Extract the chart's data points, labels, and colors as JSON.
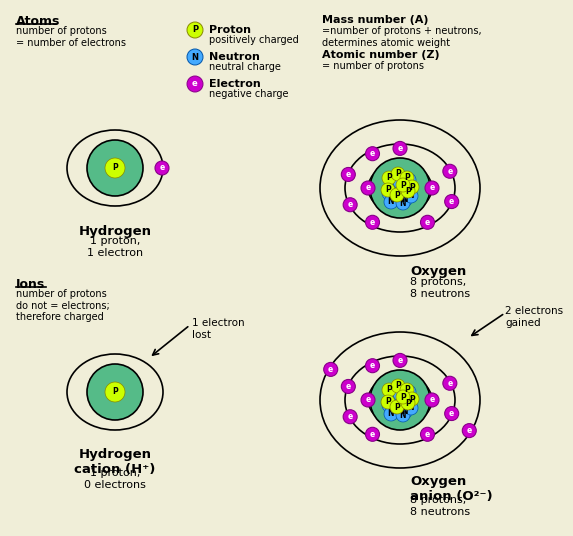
{
  "bg_color": "#f0eed8",
  "proton_color": "#ccff00",
  "neutron_color": "#44aaff",
  "electron_color": "#cc00cc",
  "nuc_bg_color": "#55bb88",
  "atoms_label": "Atoms",
  "atoms_desc": "number of protons\n= number of electrons",
  "ions_label": "Ions",
  "ions_desc": "number of protons\ndo not = electrons;\ntherefore charged",
  "legend_proton_label": "Proton",
  "legend_proton_desc": "positively charged",
  "legend_neutron_label": "Neutron",
  "legend_neutron_desc": "neutral charge",
  "legend_electron_label": "Electron",
  "legend_electron_desc": "negative charge",
  "mass_number_title": "Mass number (A)",
  "mass_number_desc": "=number of protons + neutrons,\ndetermines atomic weight",
  "atomic_number_title": "Atomic number (Z)",
  "atomic_number_desc": "= number of protons",
  "hydrogen_atom_label": "Hydrogen",
  "hydrogen_atom_desc": "1 proton,\n1 electron",
  "oxygen_atom_label": "Oxygen",
  "oxygen_atom_desc": "8 protons,\n8 neutrons",
  "hydrogen_ion_label": "Hydrogen\ncation (H⁺)",
  "hydrogen_ion_desc": "1 proton,\n0 electrons",
  "electron_lost_label": "1 electron\nlost",
  "oxygen_ion_label": "Oxygen\nanion (O²⁻)",
  "oxygen_ion_desc": "8 protons,\n8 neutrons",
  "electrons_gained_label": "2 electrons\ngained"
}
